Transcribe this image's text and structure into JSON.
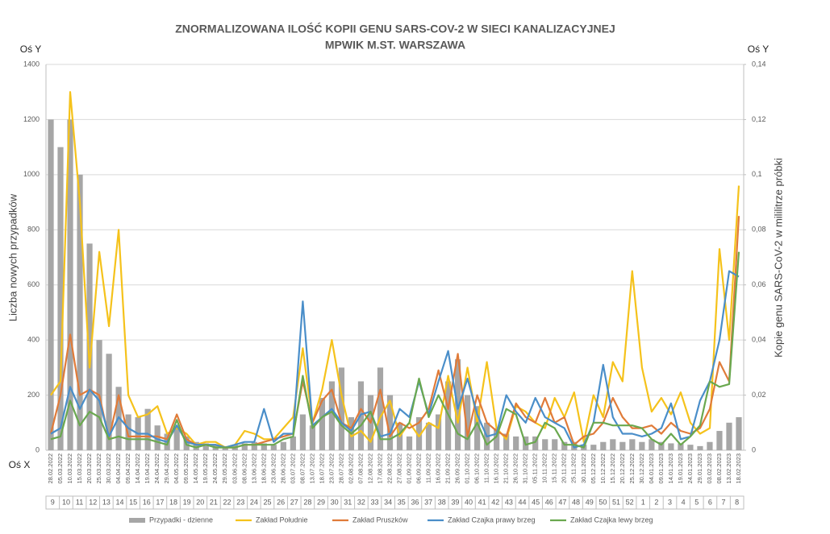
{
  "chart_data": {
    "type": "combo",
    "title": "ZNORMALIZOWANA ILOŚĆ KOPII GENU SARS-COV-2 W SIECI KANALIZACYJNEJ",
    "subtitle": "MPWIK M.ST. WARSZAWA",
    "y_axis_name": "Oś Y",
    "y2_axis_name": "Oś Y",
    "x_axis_name": "Oś X",
    "ylabel": "Liczba nowych przypadków",
    "y2label": "Kopie genu SARS-CoV-2 w mililitrze próbki",
    "grid": true,
    "x": [
      "28.02.2022",
      "05.03.2022",
      "10.03.2022",
      "15.03.2022",
      "20.03.2022",
      "25.03.2022",
      "30.03.2022",
      "04.04.2022",
      "09.04.2022",
      "14.04.2022",
      "19.04.2022",
      "24.04.2022",
      "29.04.2022",
      "04.05.2022",
      "09.05.2022",
      "14.05.2022",
      "19.05.2022",
      "24.05.2022",
      "29.05.2022",
      "03.06.2022",
      "08.06.2022",
      "13.06.2022",
      "18.06.2022",
      "23.06.2022",
      "28.06.2022",
      "03.07.2022",
      "08.07.2022",
      "13.07.2022",
      "18.07.2022",
      "23.07.2022",
      "28.07.2022",
      "02.08.2022",
      "07.08.2022",
      "12.08.2022",
      "17.08.2022",
      "22.08.2022",
      "27.08.2022",
      "01.09.2022",
      "06.09.2022",
      "11.09.2022",
      "16.09.2022",
      "21.09.2022",
      "26.09.2022",
      "01.10.2022",
      "06.10.2022",
      "11.10.2022",
      "16.10.2022",
      "21.10.2022",
      "26.10.2022",
      "31.10.2022",
      "05.11.2022",
      "10.11.2022",
      "15.11.2022",
      "20.11.2022",
      "25.11.2022",
      "30.11.2022",
      "05.12.2022",
      "10.12.2022",
      "15.12.2022",
      "20.12.2022",
      "25.12.2022",
      "30.12.2022",
      "04.01.2023",
      "09.01.2023",
      "14.01.2023",
      "19.01.2023",
      "24.01.2023",
      "29.01.2023",
      "03.02.2023",
      "08.02.2023",
      "13.02.2023",
      "18.02.2023"
    ],
    "weeks": [
      "9",
      "10",
      "11",
      "12",
      "13",
      "14",
      "15",
      "16",
      "17",
      "18",
      "19",
      "20",
      "21",
      "22",
      "23",
      "24",
      "25",
      "26",
      "27",
      "28",
      "29",
      "30",
      "31",
      "32",
      "33",
      "34",
      "35",
      "36",
      "37",
      "38",
      "39",
      "40",
      "41",
      "42",
      "43",
      "44",
      "45",
      "46",
      "47",
      "48",
      "49",
      "50",
      "51",
      "52",
      "1",
      "2",
      "3",
      "4",
      "5",
      "6",
      "7",
      "8"
    ],
    "ylim": [
      0,
      1400
    ],
    "yticks": [
      0,
      200,
      400,
      600,
      800,
      1000,
      1200,
      1400
    ],
    "y2lim": [
      0,
      0.14
    ],
    "y2ticks": [
      0,
      {
        "value": 0.02,
        "label": "0,02"
      },
      {
        "value": 0.04,
        "label": "0,04"
      },
      {
        "value": 0.06,
        "label": "0,06"
      },
      {
        "value": 0.08,
        "label": "0,08"
      },
      {
        "value": 0.1,
        "label": "0,1"
      },
      {
        "value": 0.12,
        "label": "0,12"
      },
      {
        "value": 0.14,
        "label": "0,14"
      }
    ],
    "series": [
      {
        "name": "Przypadki - dzienne",
        "type": "bar",
        "axis": "y",
        "color": "#a6a6a6",
        "values": [
          1200,
          1100,
          1200,
          1000,
          750,
          400,
          350,
          230,
          130,
          120,
          150,
          90,
          60,
          80,
          50,
          30,
          25,
          20,
          15,
          20,
          25,
          30,
          25,
          20,
          30,
          50,
          130,
          90,
          190,
          250,
          300,
          120,
          250,
          200,
          300,
          200,
          100,
          50,
          120,
          100,
          130,
          250,
          330,
          200,
          160,
          100,
          80,
          60,
          50,
          50,
          50,
          40,
          40,
          30,
          30,
          20,
          20,
          30,
          40,
          30,
          40,
          30,
          40,
          30,
          25,
          25,
          20,
          15,
          30,
          70,
          100,
          120
        ]
      },
      {
        "name": "Zakład Południe",
        "type": "line",
        "axis": "y2",
        "color": "#f5c21b",
        "values": [
          0.02,
          0.025,
          0.13,
          0.09,
          0.03,
          0.072,
          0.045,
          0.08,
          0.02,
          0.012,
          0.013,
          0.016,
          0.006,
          0.008,
          0.006,
          0.002,
          0.003,
          0.003,
          0.001,
          0.002,
          0.007,
          0.006,
          0.004,
          0.004,
          0.008,
          0.012,
          0.037,
          0.01,
          0.022,
          0.04,
          0.02,
          0.005,
          0.007,
          0.003,
          0.012,
          0.018,
          0.005,
          0.01,
          0.005,
          0.01,
          0.008,
          0.027,
          0.01,
          0.03,
          0.01,
          0.032,
          0.008,
          0.004,
          0.016,
          0.014,
          0.01,
          0.008,
          0.019,
          0.012,
          0.021,
          0.003,
          0.02,
          0.012,
          0.032,
          0.025,
          0.065,
          0.03,
          0.014,
          0.019,
          0.013,
          0.021,
          0.01,
          0.006,
          0.008,
          0.073,
          0.04,
          0.096
        ]
      },
      {
        "name": "Zakład Pruszków",
        "type": "line",
        "axis": "y2",
        "color": "#e07b39",
        "values": [
          0.006,
          0.02,
          0.042,
          0.02,
          0.022,
          0.02,
          0.004,
          0.02,
          0.005,
          0.005,
          0.005,
          0.005,
          0.004,
          0.013,
          0.004,
          0.002,
          0.002,
          0.002,
          0.001,
          0.001,
          0.002,
          0.002,
          0.003,
          0.004,
          0.005,
          0.006,
          0.025,
          0.01,
          0.018,
          0.022,
          0.01,
          0.008,
          0.015,
          0.01,
          0.022,
          0.005,
          0.01,
          0.008,
          0.01,
          0.015,
          0.029,
          0.015,
          0.035,
          0.005,
          0.02,
          0.01,
          0.007,
          0.005,
          0.017,
          0.012,
          0.01,
          0.019,
          0.01,
          0.012,
          0.002,
          0.005,
          0.006,
          0.01,
          0.019,
          0.012,
          0.008,
          0.008,
          0.009,
          0.006,
          0.01,
          0.007,
          0.006,
          0.008,
          0.015,
          0.032,
          0.025,
          0.085
        ]
      },
      {
        "name": "Zakład Czajka prawy brzeg",
        "type": "line",
        "axis": "y2",
        "color": "#4a8ec9",
        "values": [
          0.006,
          0.008,
          0.023,
          0.015,
          0.022,
          0.018,
          0.005,
          0.012,
          0.008,
          0.006,
          0.006,
          0.004,
          0.003,
          0.009,
          0.003,
          0.002,
          0.002,
          0.002,
          0.001,
          0.002,
          0.003,
          0.003,
          0.015,
          0.003,
          0.006,
          0.006,
          0.054,
          0.009,
          0.012,
          0.015,
          0.01,
          0.007,
          0.013,
          0.014,
          0.005,
          0.006,
          0.015,
          0.012,
          0.025,
          0.013,
          0.025,
          0.036,
          0.015,
          0.026,
          0.013,
          0.005,
          0.006,
          0.02,
          0.014,
          0.01,
          0.019,
          0.012,
          0.01,
          0.008,
          0.001,
          0.002,
          0.01,
          0.031,
          0.012,
          0.006,
          0.006,
          0.005,
          0.006,
          0.008,
          0.017,
          0.004,
          0.005,
          0.018,
          0.025,
          0.04,
          0.065,
          0.063
        ]
      },
      {
        "name": "Zakład Czajka lewy brzeg",
        "type": "line",
        "axis": "y2",
        "color": "#6aa84f",
        "values": [
          0.004,
          0.005,
          0.018,
          0.009,
          0.014,
          0.012,
          0.004,
          0.005,
          0.004,
          0.004,
          0.004,
          0.003,
          0.002,
          0.011,
          0.002,
          0.001,
          0.002,
          0.001,
          0.001,
          0.001,
          0.002,
          0.002,
          0.002,
          0.002,
          0.004,
          0.005,
          0.027,
          0.008,
          0.012,
          0.014,
          0.009,
          0.006,
          0.009,
          0.014,
          0.004,
          0.004,
          0.006,
          0.01,
          0.026,
          0.012,
          0.02,
          0.013,
          0.006,
          0.004,
          0.01,
          0.002,
          0.005,
          0.015,
          0.013,
          0.002,
          0.003,
          0.01,
          0.008,
          0.002,
          0.002,
          0.001,
          0.01,
          0.01,
          0.009,
          0.009,
          0.009,
          0.008,
          0.004,
          0.002,
          0.006,
          0.002,
          0.005,
          0.009,
          0.025,
          0.023,
          0.024,
          0.072
        ]
      }
    ]
  }
}
